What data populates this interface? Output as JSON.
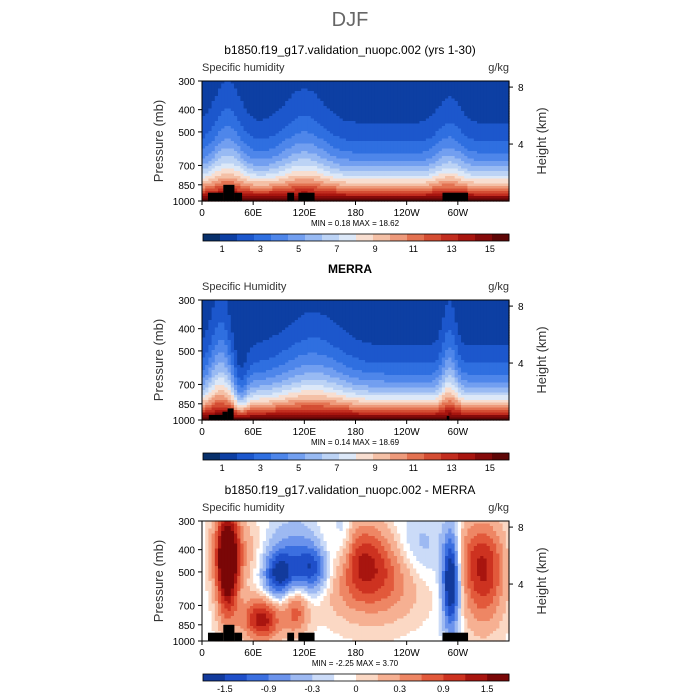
{
  "season": "DJF",
  "colors": {
    "wet_scale": [
      "#08306b",
      "#0d3fa3",
      "#1c57cc",
      "#2f6fe0",
      "#4e86ea",
      "#729ff0",
      "#98baf3",
      "#bcd3f5",
      "#dce8f8",
      "#f8ded0",
      "#f4c0a6",
      "#ee9a7b",
      "#e37251",
      "#d44d33",
      "#c22d1f",
      "#a8150f",
      "#850a0a",
      "#5e0606"
    ],
    "diff_scale": [
      "#123a9c",
      "#1f4fc9",
      "#3b6fe0",
      "#6b93ec",
      "#9db9f2",
      "#cbdbf8",
      "#ffffff",
      "#fbd8c4",
      "#f6b092",
      "#ee8664",
      "#e2593b",
      "#cd3220",
      "#a8150f",
      "#7a0707"
    ],
    "topo": "#000000"
  },
  "panels": [
    {
      "title": "b1850.f19_g17.validation_nuopc.002 (yrs 1-30)",
      "left_label": "Specific humidity",
      "right_label": "g/kg",
      "y_axis_label": "Pressure (mb)",
      "right_axis_label": "Height (km)",
      "stats": "MIN =   0.18   MAX =  18.62",
      "colorbar_labels": [
        "1",
        "3",
        "5",
        "7",
        "9",
        "11",
        "13",
        "15"
      ]
    },
    {
      "title": "MERRA",
      "left_label": "Specific Humidity",
      "right_label": "g/kg",
      "y_axis_label": "Pressure (mb)",
      "right_axis_label": "Height (km)",
      "stats": "MIN =   0.14   MAX =  18.69",
      "colorbar_labels": [
        "1",
        "3",
        "5",
        "7",
        "9",
        "11",
        "13",
        "15"
      ]
    },
    {
      "title": "b1850.f19_g17.validation_nuopc.002 - MERRA",
      "left_label": "Specific humidity",
      "right_label": "g/kg",
      "y_axis_label": "Pressure (mb)",
      "right_axis_label": "Height (km)",
      "stats": "MIN =  -2.25   MAX =  3.70",
      "colorbar_labels": [
        "-1.5",
        "-0.9",
        "-0.3",
        "0",
        "0.3",
        "0.9",
        "1.5"
      ]
    }
  ],
  "chart_data": [
    {
      "type": "heatmap",
      "title": "b1850.f19_g17.validation_nuopc.002 (yrs 1-30)",
      "variable": "Specific humidity",
      "units": "g/kg",
      "stats": {
        "min": 0.18,
        "max": 18.62
      },
      "x_ticks": [
        "0",
        "60E",
        "120E",
        "180",
        "120W",
        "60W"
      ],
      "x_tick_values": [
        0,
        60,
        120,
        180,
        240,
        300
      ],
      "xlim": [
        0,
        360
      ],
      "y_ticks": [
        300,
        400,
        500,
        700,
        850,
        1000
      ],
      "ylim": [
        1000,
        300
      ],
      "y_scale": "log-pressure",
      "right_ticks": [
        4,
        8
      ],
      "colorbar": {
        "labels": [
          1,
          3,
          5,
          7,
          9,
          11,
          13,
          15
        ]
      }
    },
    {
      "type": "heatmap",
      "title": "MERRA",
      "variable": "Specific Humidity",
      "units": "g/kg",
      "stats": {
        "min": 0.14,
        "max": 18.69
      },
      "x_ticks": [
        "0",
        "60E",
        "120E",
        "180",
        "120W",
        "60W"
      ],
      "x_tick_values": [
        0,
        60,
        120,
        180,
        240,
        300
      ],
      "xlim": [
        0,
        360
      ],
      "y_ticks": [
        300,
        400,
        500,
        700,
        850,
        1000
      ],
      "ylim": [
        1000,
        300
      ],
      "y_scale": "log-pressure",
      "right_ticks": [
        4,
        8
      ],
      "colorbar": {
        "labels": [
          1,
          3,
          5,
          7,
          9,
          11,
          13,
          15
        ]
      }
    },
    {
      "type": "heatmap",
      "title": "b1850.f19_g17.validation_nuopc.002 - MERRA",
      "variable": "Specific humidity",
      "units": "g/kg",
      "stats": {
        "min": -2.25,
        "max": 3.7
      },
      "x_ticks": [
        "0",
        "60E",
        "120E",
        "180",
        "120W",
        "60W"
      ],
      "x_tick_values": [
        0,
        60,
        120,
        180,
        240,
        300
      ],
      "xlim": [
        0,
        360
      ],
      "y_ticks": [
        300,
        400,
        500,
        700,
        850,
        1000
      ],
      "ylim": [
        1000,
        300
      ],
      "y_scale": "log-pressure",
      "right_ticks": [
        4,
        8
      ],
      "colorbar": {
        "labels": [
          -1.5,
          -0.9,
          -0.3,
          0,
          0.3,
          0.9,
          1.5
        ]
      }
    }
  ]
}
